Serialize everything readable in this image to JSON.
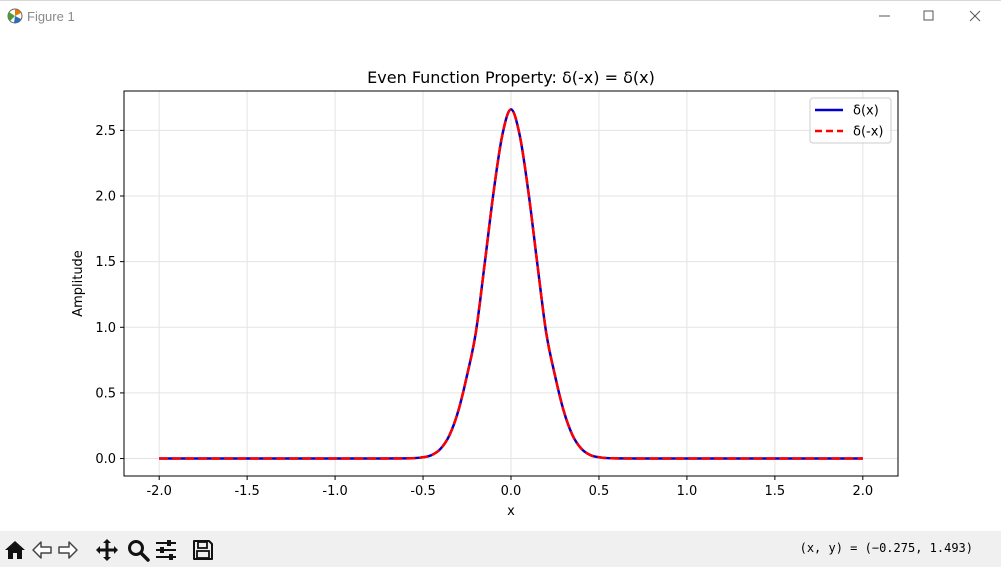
{
  "window": {
    "title": "Figure 1",
    "controls": [
      "minimize",
      "maximize",
      "close"
    ]
  },
  "toolbar": {
    "buttons": [
      "home-icon",
      "back-icon",
      "forward-icon",
      "pan-icon",
      "zoom-icon",
      "configure-subplots-icon",
      "save-icon"
    ],
    "coordinates": "(x, y) = (−0.275, 1.493)"
  },
  "chart_data": {
    "type": "line",
    "title": "Even Function Property: δ(-x) = δ(x)",
    "xlabel": "x",
    "ylabel": "Amplitude",
    "xlim": [
      -2.2,
      2.2
    ],
    "ylim": [
      -0.133,
      2.8
    ],
    "xticks": [
      -2.0,
      -1.5,
      -1.0,
      -0.5,
      0.0,
      0.5,
      1.0,
      1.5,
      2.0
    ],
    "xtick_labels": [
      "-2.0",
      "-1.5",
      "-1.0",
      "-0.5",
      "0.0",
      "0.5",
      "1.0",
      "1.5",
      "2.0"
    ],
    "yticks": [
      0.0,
      0.5,
      1.0,
      1.5,
      2.0,
      2.5
    ],
    "ytick_labels": [
      "0.0",
      "0.5",
      "1.0",
      "1.5",
      "2.0",
      "2.5"
    ],
    "grid": true,
    "legend_position": "top-right",
    "x": [
      -2.0,
      -1.5,
      -1.0,
      -0.6,
      -0.5,
      -0.45,
      -0.4,
      -0.35,
      -0.3,
      -0.25,
      -0.2,
      -0.15,
      -0.1,
      -0.05,
      0.0,
      0.05,
      0.1,
      0.15,
      0.2,
      0.25,
      0.3,
      0.35,
      0.4,
      0.45,
      0.5,
      0.6,
      1.0,
      1.5,
      2.0
    ],
    "series": [
      {
        "name": "δ(x)",
        "color": "#0000cc",
        "style": "solid",
        "y": [
          0.0,
          0.0,
          0.0,
          0.001,
          0.01,
          0.027,
          0.075,
          0.177,
          0.361,
          0.633,
          0.96,
          1.48,
          2.02,
          2.46,
          2.66,
          2.46,
          2.02,
          1.48,
          0.96,
          0.633,
          0.361,
          0.177,
          0.075,
          0.027,
          0.01,
          0.001,
          0.0,
          0.0,
          0.0
        ]
      },
      {
        "name": "δ(-x)",
        "color": "#ff0000",
        "style": "dashed",
        "y": [
          0.0,
          0.0,
          0.0,
          0.001,
          0.01,
          0.027,
          0.075,
          0.177,
          0.361,
          0.633,
          0.96,
          1.48,
          2.02,
          2.46,
          2.66,
          2.46,
          2.02,
          1.48,
          0.96,
          0.633,
          0.361,
          0.177,
          0.075,
          0.027,
          0.01,
          0.001,
          0.0,
          0.0,
          0.0
        ]
      }
    ]
  }
}
